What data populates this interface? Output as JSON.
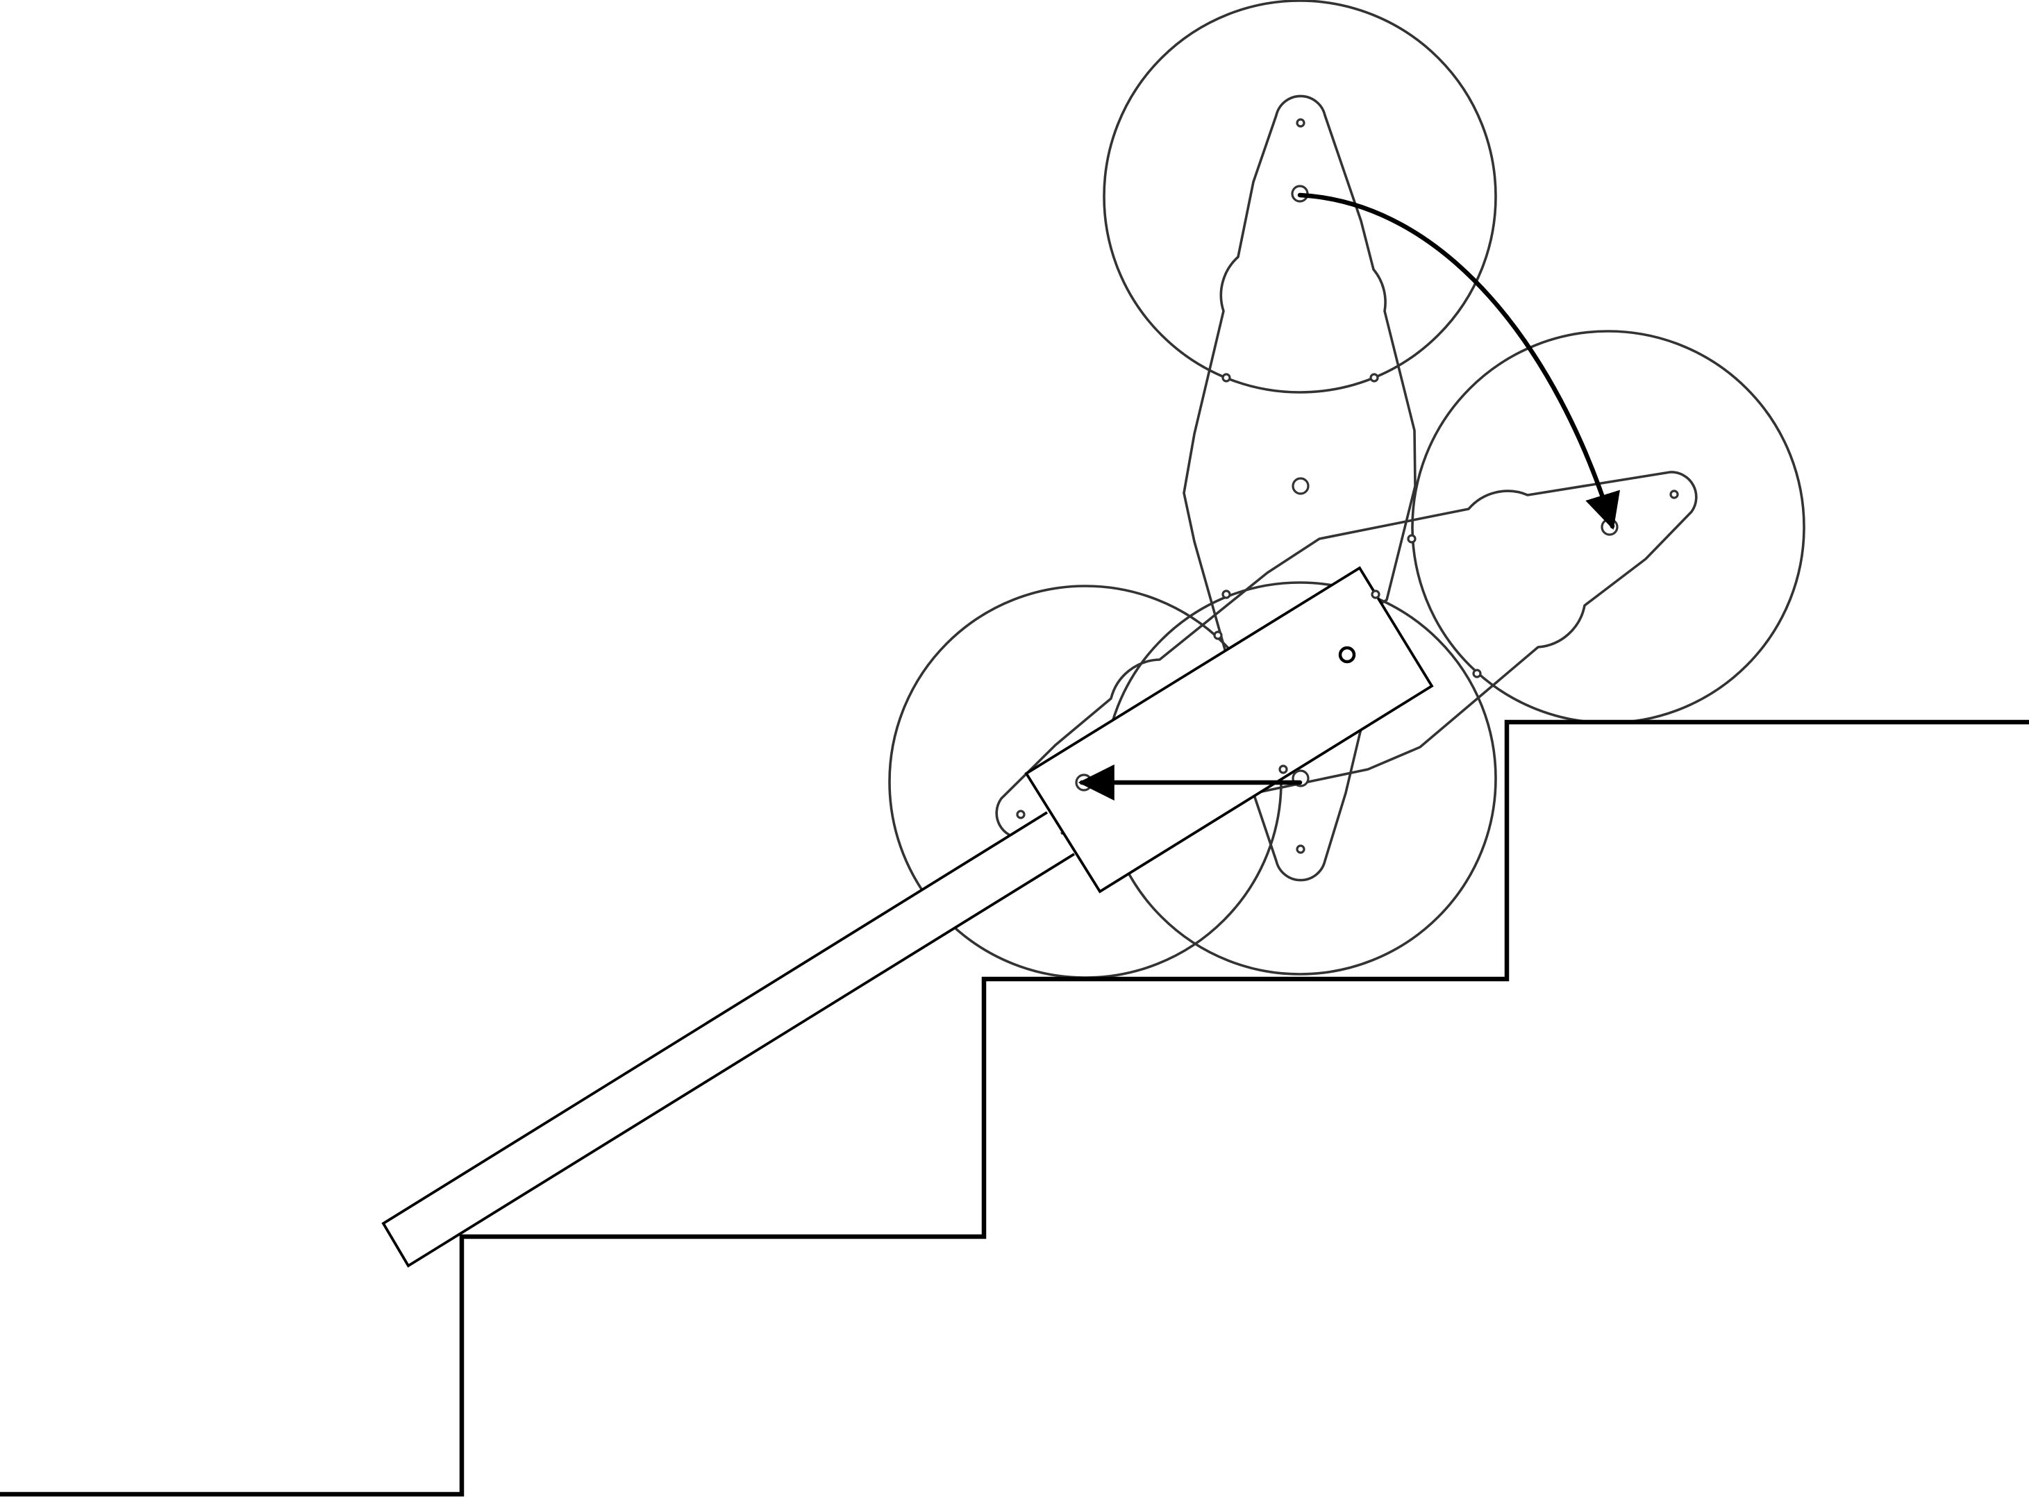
{
  "diagram": {
    "kind": "stair-climbing tri-star wheel mechanism",
    "line_color": "#333333",
    "accent_color": "#000000",
    "background": "#ffffff",
    "components": {
      "stairs": "stair-profile",
      "handle": "hand-truck-frame",
      "wheel_clusters": [
        "tri-star-vertical",
        "tri-star-rotated"
      ],
      "wheels": 4,
      "motion_arrows": [
        "rotation-arrow",
        "translation-arrow"
      ]
    },
    "texts": []
  }
}
